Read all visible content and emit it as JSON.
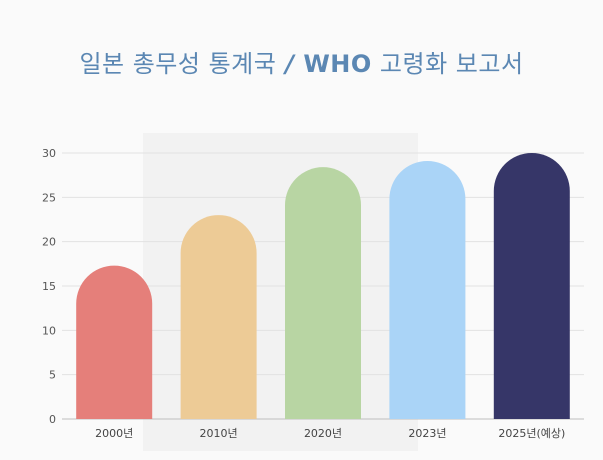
{
  "title": {
    "prefix": "일본 총무성 통계국",
    "separator": " / ",
    "who": "WHO",
    "suffix": " 고령화 보고서"
  },
  "chart_data": {
    "type": "bar",
    "title": "일본 총무성 통계국 / WHO 고령화 보고서",
    "categories": [
      "2000년",
      "2010년",
      "2020년",
      "2023년",
      "2025년(예상)"
    ],
    "values": [
      17.3,
      23.0,
      28.4,
      29.1,
      30.0
    ],
    "colors": [
      "#e57f7a",
      "#edcb96",
      "#b8d5a3",
      "#aad4f7",
      "#363668"
    ],
    "ylim": [
      0,
      30
    ],
    "yticks": [
      0,
      5,
      10,
      15,
      20,
      25,
      30
    ],
    "xlabel": "",
    "ylabel": "",
    "grid": true,
    "legend": "none"
  }
}
